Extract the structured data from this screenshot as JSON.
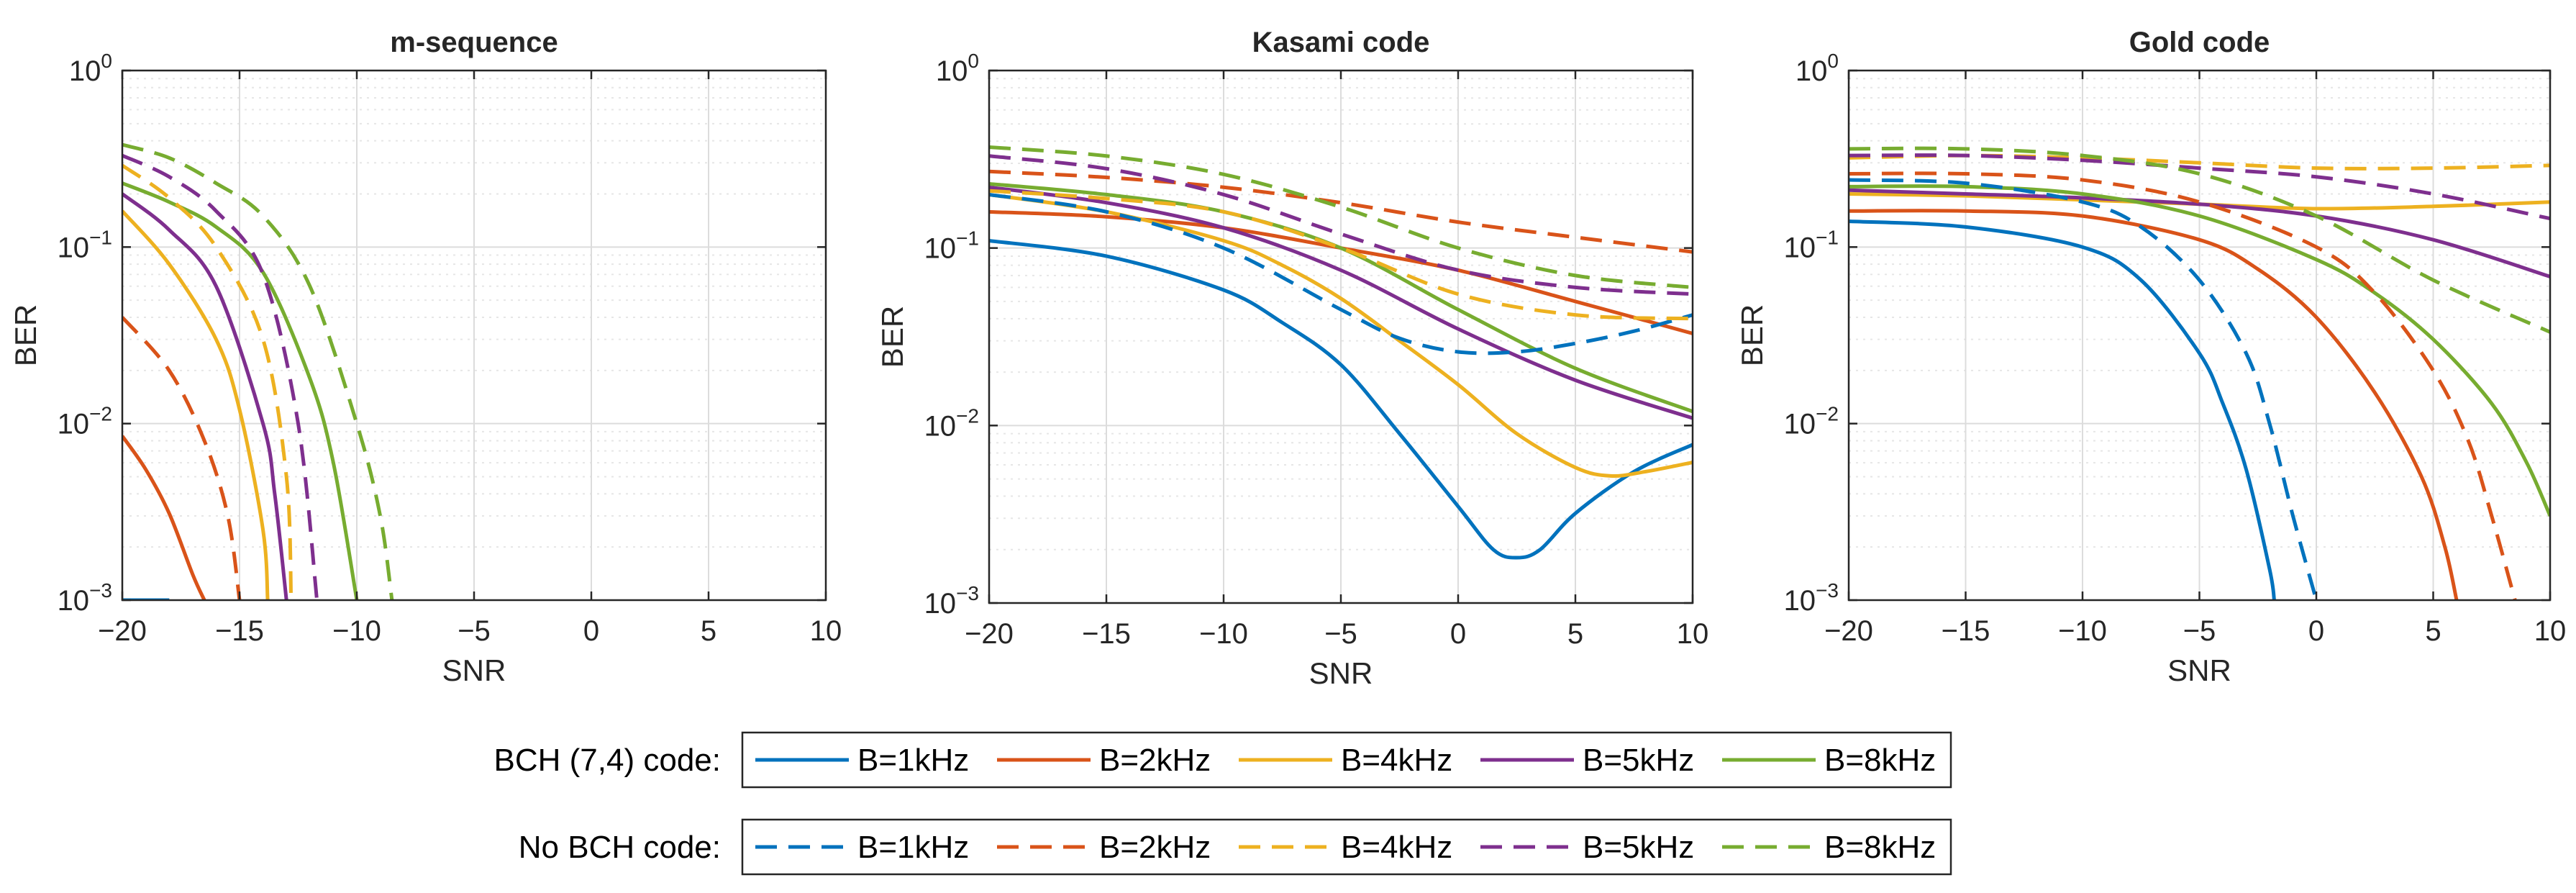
{
  "chart_data": [
    {
      "type": "line",
      "title": "m-sequence",
      "xlabel": "SNR",
      "ylabel": "BER",
      "yscale": "log",
      "xlim": [
        -20,
        10
      ],
      "ylim": [
        0.001,
        1
      ],
      "xticks": [
        -20,
        -15,
        -10,
        -5,
        0,
        5,
        10
      ],
      "yticks": [
        0.001,
        0.01,
        0.1,
        1
      ],
      "grid": true,
      "series": [
        {
          "name": "B=1kHz",
          "coding": "BCH (7,4) code",
          "color": "#0072bd",
          "dash": "solid",
          "x": [
            -20,
            -18
          ],
          "y": [
            0.001,
            0.001
          ]
        },
        {
          "name": "B=2kHz",
          "coding": "BCH (7,4) code",
          "color": "#d95319",
          "dash": "solid",
          "x": [
            -20,
            -19,
            -18,
            -17,
            -16.5
          ],
          "y": [
            0.0085,
            0.0055,
            0.0031,
            0.0014,
            0.001
          ]
        },
        {
          "name": "B=4kHz",
          "coding": "BCH (7,4) code",
          "color": "#edb120",
          "dash": "solid",
          "x": [
            -20,
            -18,
            -16,
            -15,
            -14,
            -13.8
          ],
          "y": [
            0.16,
            0.08,
            0.03,
            0.012,
            0.0025,
            0.001
          ]
        },
        {
          "name": "B=5kHz",
          "coding": "BCH (7,4) code",
          "color": "#7e2f8e",
          "dash": "solid",
          "x": [
            -20,
            -18,
            -16,
            -14,
            -13.5,
            -13
          ],
          "y": [
            0.2,
            0.125,
            0.06,
            0.01,
            0.004,
            0.001
          ]
        },
        {
          "name": "B=8kHz",
          "coding": "BCH (7,4) code",
          "color": "#77ac30",
          "dash": "solid",
          "x": [
            -20,
            -18,
            -16,
            -14,
            -12,
            -11,
            -10
          ],
          "y": [
            0.23,
            0.18,
            0.13,
            0.072,
            0.018,
            0.006,
            0.001
          ]
        },
        {
          "name": "B=1kHz",
          "coding": "No BCH code",
          "color": "#0072bd",
          "dash": "dashed",
          "x": [
            -20,
            -18
          ],
          "y": [
            0.001,
            0.001
          ]
        },
        {
          "name": "B=2kHz",
          "coding": "No BCH code",
          "color": "#d95319",
          "dash": "dashed",
          "x": [
            -20,
            -18,
            -16.5,
            -15.5,
            -15
          ],
          "y": [
            0.04,
            0.02,
            0.008,
            0.003,
            0.001
          ]
        },
        {
          "name": "B=4kHz",
          "coding": "No BCH code",
          "color": "#edb120",
          "dash": "dashed",
          "x": [
            -20,
            -18,
            -16,
            -14,
            -13,
            -12.8
          ],
          "y": [
            0.29,
            0.19,
            0.1,
            0.03,
            0.005,
            0.001
          ]
        },
        {
          "name": "B=5kHz",
          "coding": "No BCH code",
          "color": "#7e2f8e",
          "dash": "dashed",
          "x": [
            -20,
            -18,
            -16,
            -14,
            -12.5,
            -11.7
          ],
          "y": [
            0.33,
            0.25,
            0.16,
            0.07,
            0.01,
            0.001
          ]
        },
        {
          "name": "B=8kHz",
          "coding": "No BCH code",
          "color": "#77ac30",
          "dash": "dashed",
          "x": [
            -20,
            -18,
            -16,
            -14,
            -12,
            -10,
            -9,
            -8.5
          ],
          "y": [
            0.38,
            0.32,
            0.23,
            0.15,
            0.06,
            0.01,
            0.003,
            0.001
          ]
        }
      ]
    },
    {
      "type": "line",
      "title": "Kasami code",
      "xlabel": "SNR",
      "ylabel": "BER",
      "yscale": "log",
      "xlim": [
        -20,
        10
      ],
      "ylim": [
        0.001,
        1
      ],
      "xticks": [
        -20,
        -15,
        -10,
        -5,
        0,
        5,
        10
      ],
      "yticks": [
        0.001,
        0.01,
        0.1,
        1
      ],
      "grid": true,
      "series": [
        {
          "name": "B=1kHz",
          "coding": "BCH (7,4) code",
          "color": "#0072bd",
          "dash": "solid",
          "x": [
            -20,
            -15,
            -10,
            -7.5,
            -5,
            -2.5,
            0,
            1.5,
            2.5,
            3.5,
            5,
            7.5,
            10
          ],
          "y": [
            0.11,
            0.09,
            0.058,
            0.038,
            0.022,
            0.009,
            0.0035,
            0.002,
            0.0018,
            0.002,
            0.0032,
            0.0055,
            0.0078
          ]
        },
        {
          "name": "B=2kHz",
          "coding": "BCH (7,4) code",
          "color": "#d95319",
          "dash": "solid",
          "x": [
            -20,
            -15,
            -10,
            -5,
            0,
            5,
            10
          ],
          "y": [
            0.16,
            0.15,
            0.13,
            0.1,
            0.075,
            0.05,
            0.033
          ]
        },
        {
          "name": "B=4kHz",
          "coding": "BCH (7,4) code",
          "color": "#edb120",
          "dash": "solid",
          "x": [
            -20,
            -15,
            -10,
            -7.5,
            -5,
            -2.5,
            0,
            2.5,
            5,
            6.5,
            8,
            10
          ],
          "y": [
            0.2,
            0.16,
            0.11,
            0.08,
            0.052,
            0.03,
            0.017,
            0.009,
            0.0058,
            0.0052,
            0.0055,
            0.0062
          ]
        },
        {
          "name": "B=5kHz",
          "coding": "BCH (7,4) code",
          "color": "#7e2f8e",
          "dash": "solid",
          "x": [
            -20,
            -15,
            -10,
            -5,
            0,
            5,
            10
          ],
          "y": [
            0.22,
            0.18,
            0.13,
            0.075,
            0.035,
            0.018,
            0.011
          ]
        },
        {
          "name": "B=8kHz",
          "coding": "BCH (7,4) code",
          "color": "#77ac30",
          "dash": "solid",
          "x": [
            -20,
            -15,
            -10,
            -5,
            0,
            5,
            10
          ],
          "y": [
            0.23,
            0.2,
            0.16,
            0.1,
            0.045,
            0.021,
            0.012
          ]
        },
        {
          "name": "B=1kHz",
          "coding": "No BCH code",
          "color": "#0072bd",
          "dash": "dashed",
          "x": [
            -20,
            -15,
            -10,
            -5,
            -2.5,
            0,
            2.5,
            5,
            7.5,
            10
          ],
          "y": [
            0.2,
            0.16,
            0.1,
            0.045,
            0.031,
            0.026,
            0.026,
            0.029,
            0.034,
            0.042
          ]
        },
        {
          "name": "B=2kHz",
          "coding": "No BCH code",
          "color": "#d95319",
          "dash": "dashed",
          "x": [
            -20,
            -15,
            -10,
            -5,
            0,
            5,
            10
          ],
          "y": [
            0.27,
            0.25,
            0.22,
            0.18,
            0.14,
            0.115,
            0.095
          ]
        },
        {
          "name": "B=4kHz",
          "coding": "No BCH code",
          "color": "#edb120",
          "dash": "dashed",
          "x": [
            -20,
            -15,
            -10,
            -5,
            0,
            5,
            10
          ],
          "y": [
            0.21,
            0.19,
            0.16,
            0.1,
            0.055,
            0.042,
            0.04
          ]
        },
        {
          "name": "B=5kHz",
          "coding": "No BCH code",
          "color": "#7e2f8e",
          "dash": "dashed",
          "x": [
            -20,
            -15,
            -10,
            -5,
            0,
            5,
            10
          ],
          "y": [
            0.33,
            0.28,
            0.2,
            0.12,
            0.075,
            0.06,
            0.055
          ]
        },
        {
          "name": "B=8kHz",
          "coding": "No BCH code",
          "color": "#77ac30",
          "dash": "dashed",
          "x": [
            -20,
            -15,
            -10,
            -5,
            0,
            5,
            10
          ],
          "y": [
            0.37,
            0.33,
            0.26,
            0.17,
            0.1,
            0.07,
            0.06
          ]
        }
      ]
    },
    {
      "type": "line",
      "title": "Gold code",
      "xlabel": "SNR",
      "ylabel": "BER",
      "yscale": "log",
      "xlim": [
        -20,
        10
      ],
      "ylim": [
        0.001,
        1
      ],
      "xticks": [
        -20,
        -15,
        -10,
        -5,
        0,
        5,
        10
      ],
      "yticks": [
        0.001,
        0.01,
        0.1,
        1
      ],
      "grid": true,
      "series": [
        {
          "name": "B=1kHz",
          "coding": "BCH (7,4) code",
          "color": "#0072bd",
          "dash": "solid",
          "x": [
            -20,
            -15,
            -10,
            -7.5,
            -5,
            -4,
            -3,
            -2,
            -1.8
          ],
          "y": [
            0.14,
            0.13,
            0.1,
            0.065,
            0.025,
            0.013,
            0.0055,
            0.0015,
            0.001
          ]
        },
        {
          "name": "B=2kHz",
          "coding": "BCH (7,4) code",
          "color": "#d95319",
          "dash": "solid",
          "x": [
            -20,
            -15,
            -10,
            -5,
            -2.5,
            0,
            2.5,
            4.5,
            5.5,
            6
          ],
          "y": [
            0.16,
            0.16,
            0.15,
            0.11,
            0.075,
            0.04,
            0.015,
            0.005,
            0.002,
            0.001
          ]
        },
        {
          "name": "B=4kHz",
          "coding": "BCH (7,4) code",
          "color": "#edb120",
          "dash": "solid",
          "x": [
            -20,
            -15,
            -10,
            -5,
            0,
            5,
            10
          ],
          "y": [
            0.2,
            0.195,
            0.185,
            0.175,
            0.165,
            0.17,
            0.18
          ]
        },
        {
          "name": "B=5kHz",
          "coding": "BCH (7,4) code",
          "color": "#7e2f8e",
          "dash": "solid",
          "x": [
            -20,
            -15,
            -10,
            -5,
            0,
            5,
            10
          ],
          "y": [
            0.21,
            0.2,
            0.19,
            0.175,
            0.15,
            0.11,
            0.068
          ]
        },
        {
          "name": "B=8kHz",
          "coding": "BCH (7,4) code",
          "color": "#77ac30",
          "dash": "solid",
          "x": [
            -20,
            -15,
            -10,
            -5,
            0,
            2.5,
            5,
            7.5,
            9,
            10
          ],
          "y": [
            0.22,
            0.22,
            0.2,
            0.15,
            0.085,
            0.055,
            0.03,
            0.013,
            0.006,
            0.003
          ]
        },
        {
          "name": "B=1kHz",
          "coding": "No BCH code",
          "color": "#0072bd",
          "dash": "dashed",
          "x": [
            -20,
            -15,
            -10,
            -7.5,
            -5,
            -3,
            -2,
            -1,
            0
          ],
          "y": [
            0.24,
            0.23,
            0.18,
            0.13,
            0.065,
            0.025,
            0.01,
            0.003,
            0.001
          ]
        },
        {
          "name": "B=2kHz",
          "coding": "No BCH code",
          "color": "#d95319",
          "dash": "dashed",
          "x": [
            -20,
            -15,
            -10,
            -5,
            0,
            2.5,
            5,
            6.5,
            7.5,
            8.5
          ],
          "y": [
            0.26,
            0.26,
            0.24,
            0.18,
            0.1,
            0.055,
            0.02,
            0.008,
            0.003,
            0.001
          ]
        },
        {
          "name": "B=4kHz",
          "coding": "No BCH code",
          "color": "#edb120",
          "dash": "dashed",
          "x": [
            -20,
            -15,
            -10,
            -5,
            0,
            5,
            10
          ],
          "y": [
            0.32,
            0.33,
            0.32,
            0.3,
            0.28,
            0.28,
            0.29
          ]
        },
        {
          "name": "B=5kHz",
          "coding": "No BCH code",
          "color": "#7e2f8e",
          "dash": "dashed",
          "x": [
            -20,
            -15,
            -10,
            -5,
            0,
            5,
            10
          ],
          "y": [
            0.33,
            0.33,
            0.31,
            0.28,
            0.25,
            0.2,
            0.145
          ]
        },
        {
          "name": "B=8kHz",
          "coding": "No BCH code",
          "color": "#77ac30",
          "dash": "dashed",
          "x": [
            -20,
            -15,
            -10,
            -5,
            0,
            5,
            10
          ],
          "y": [
            0.36,
            0.36,
            0.33,
            0.26,
            0.15,
            0.065,
            0.033
          ]
        }
      ]
    }
  ],
  "legend": {
    "rows": [
      {
        "label": "BCH (7,4) code:",
        "dash": "solid",
        "entries": [
          "B=1kHz",
          "B=2kHz",
          "B=4kHz",
          "B=5kHz",
          "B=8kHz"
        ]
      },
      {
        "label": "No BCH code:",
        "dash": "dashed",
        "entries": [
          "B=1kHz",
          "B=2kHz",
          "B=4kHz",
          "B=5kHz",
          "B=8kHz"
        ]
      }
    ],
    "colors": [
      "#0072bd",
      "#d95319",
      "#edb120",
      "#7e2f8e",
      "#77ac30"
    ]
  }
}
